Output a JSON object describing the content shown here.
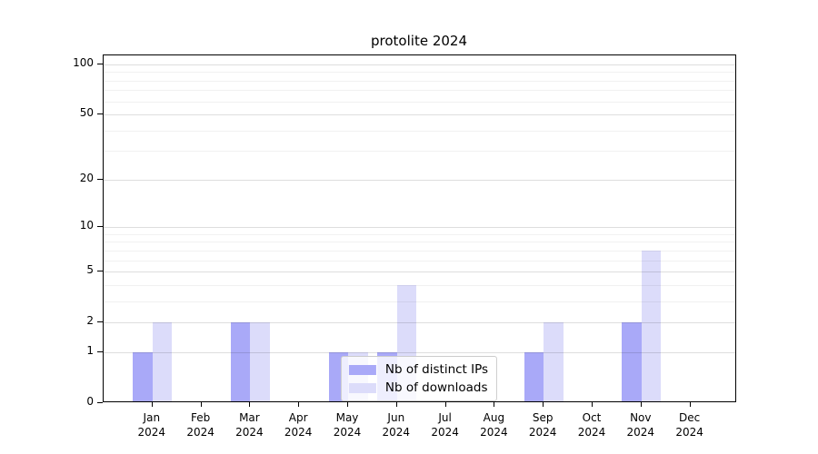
{
  "chart_data": {
    "type": "bar",
    "title": "protolite 2024",
    "categories": [
      "Jan",
      "Feb",
      "Mar",
      "Apr",
      "May",
      "Jun",
      "Jul",
      "Aug",
      "Sep",
      "Oct",
      "Nov",
      "Dec"
    ],
    "year_label": "2024",
    "series": [
      {
        "name": "Nb of distinct IPs",
        "color": "#a9a9f8",
        "values": [
          1,
          0,
          2,
          0,
          1,
          1,
          0,
          0,
          1,
          0,
          2,
          0
        ]
      },
      {
        "name": "Nb of downloads",
        "color": "#dcdcfa",
        "values": [
          2,
          0,
          2,
          0,
          1,
          4,
          0,
          0,
          2,
          0,
          7,
          0
        ]
      }
    ],
    "y_scale": "log10(value+1)",
    "y_major_ticks": [
      0,
      1,
      2,
      5,
      10,
      20,
      50,
      100
    ],
    "y_minor_gridlines": [
      3,
      4,
      6,
      7,
      8,
      9,
      30,
      40,
      60,
      70,
      80,
      90
    ],
    "legend_position": "lower center",
    "grid": "horizontal, drawn above bars",
    "colors": {
      "axis": "#000000",
      "major_grid": "rgba(0,0,0,0.13)",
      "minor_grid": "rgba(0,0,0,0.055)"
    }
  }
}
